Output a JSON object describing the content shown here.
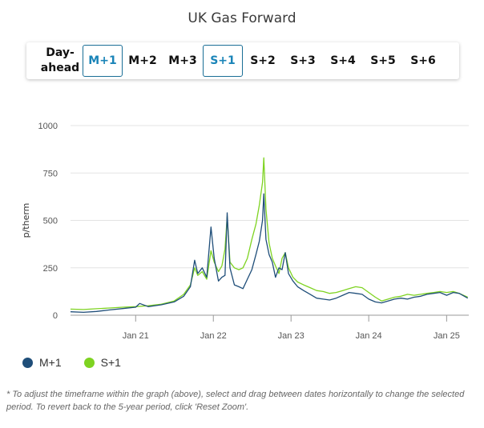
{
  "title": "UK Gas Forward",
  "tabs": [
    {
      "label": "Day-\nahead",
      "active": false
    },
    {
      "label": "M+1",
      "active": true
    },
    {
      "label": "M+2",
      "active": false
    },
    {
      "label": "M+3",
      "active": false
    },
    {
      "label": "S+1",
      "active": true
    },
    {
      "label": "S+2",
      "active": false
    },
    {
      "label": "S+3",
      "active": false
    },
    {
      "label": "S+4",
      "active": false
    },
    {
      "label": "S+5",
      "active": false
    },
    {
      "label": "S+6",
      "active": false
    }
  ],
  "legend": [
    {
      "label": "M+1",
      "color": "#1f4e79"
    },
    {
      "label": "S+1",
      "color": "#7ed321"
    }
  ],
  "note": "* To adjust the timeframe within the graph (above), select and drag between dates horizontally to change the selected period. To revert back to the 5-year period, click 'Reset Zoom'.",
  "chart_data": {
    "type": "line",
    "ylabel": "p/therm",
    "ylim": [
      0,
      1000
    ],
    "yticks": [
      0,
      250,
      500,
      750,
      1000
    ],
    "xticks": [
      "Jan 21",
      "Jan 22",
      "Jan 23",
      "Jan 24",
      "Jan 25"
    ],
    "xticks_dates": [
      "2021-01-01",
      "2022-01-01",
      "2023-01-01",
      "2024-01-01",
      "2025-01-01"
    ],
    "xlim": [
      "2020-03-01",
      "2025-04-15"
    ],
    "grid": true,
    "series": [
      {
        "name": "M+1",
        "color": "#1f4e79",
        "x": [
          "2020-03-01",
          "2020-05-01",
          "2020-07-01",
          "2020-09-01",
          "2020-11-01",
          "2021-01-01",
          "2021-01-20",
          "2021-03-01",
          "2021-05-01",
          "2021-07-01",
          "2021-08-15",
          "2021-09-15",
          "2021-10-05",
          "2021-10-20",
          "2021-11-10",
          "2021-12-01",
          "2021-12-21",
          "2022-01-05",
          "2022-01-25",
          "2022-02-10",
          "2022-02-25",
          "2022-03-07",
          "2022-03-20",
          "2022-04-10",
          "2022-05-01",
          "2022-05-20",
          "2022-06-10",
          "2022-07-01",
          "2022-07-20",
          "2022-08-05",
          "2022-08-20",
          "2022-08-26",
          "2022-09-05",
          "2022-09-20",
          "2022-10-05",
          "2022-10-20",
          "2022-11-05",
          "2022-11-20",
          "2022-12-05",
          "2022-12-20",
          "2023-01-10",
          "2023-02-01",
          "2023-03-01",
          "2023-04-01",
          "2023-05-01",
          "2023-06-01",
          "2023-07-01",
          "2023-08-01",
          "2023-09-01",
          "2023-10-01",
          "2023-11-01",
          "2023-12-01",
          "2024-01-01",
          "2024-02-01",
          "2024-03-01",
          "2024-04-01",
          "2024-05-01",
          "2024-06-01",
          "2024-07-01",
          "2024-08-01",
          "2024-09-01",
          "2024-10-01",
          "2024-11-01",
          "2024-12-01",
          "2025-01-01",
          "2025-02-01",
          "2025-03-01",
          "2025-04-10"
        ],
        "values": [
          18,
          15,
          20,
          28,
          35,
          42,
          62,
          45,
          55,
          70,
          100,
          150,
          290,
          220,
          250,
          200,
          465,
          300,
          180,
          200,
          210,
          540,
          250,
          160,
          150,
          140,
          190,
          240,
          320,
          390,
          500,
          640,
          400,
          320,
          280,
          200,
          250,
          240,
          330,
          220,
          180,
          150,
          130,
          110,
          90,
          85,
          80,
          90,
          105,
          120,
          115,
          110,
          85,
          70,
          65,
          75,
          85,
          90,
          85,
          95,
          100,
          110,
          115,
          120,
          105,
          120,
          115,
          90
        ]
      },
      {
        "name": "S+1",
        "color": "#7ed321",
        "x": [
          "2020-03-01",
          "2020-05-01",
          "2020-07-01",
          "2020-09-01",
          "2020-11-01",
          "2021-01-01",
          "2021-03-01",
          "2021-05-01",
          "2021-07-01",
          "2021-08-15",
          "2021-09-15",
          "2021-10-05",
          "2021-10-20",
          "2021-11-10",
          "2021-12-01",
          "2021-12-21",
          "2022-01-05",
          "2022-01-25",
          "2022-02-10",
          "2022-02-25",
          "2022-03-07",
          "2022-03-20",
          "2022-04-10",
          "2022-05-01",
          "2022-05-20",
          "2022-06-10",
          "2022-07-01",
          "2022-07-20",
          "2022-08-05",
          "2022-08-20",
          "2022-08-26",
          "2022-09-05",
          "2022-09-20",
          "2022-10-05",
          "2022-10-20",
          "2022-11-05",
          "2022-11-20",
          "2022-12-05",
          "2022-12-20",
          "2023-01-10",
          "2023-02-01",
          "2023-03-01",
          "2023-04-01",
          "2023-05-01",
          "2023-06-01",
          "2023-07-01",
          "2023-08-01",
          "2023-09-01",
          "2023-10-01",
          "2023-11-01",
          "2023-12-01",
          "2024-01-01",
          "2024-02-01",
          "2024-03-01",
          "2024-04-01",
          "2024-05-01",
          "2024-06-01",
          "2024-07-01",
          "2024-08-01",
          "2024-09-01",
          "2024-10-01",
          "2024-11-01",
          "2024-12-01",
          "2025-01-01",
          "2025-02-01",
          "2025-03-01",
          "2025-04-10"
        ],
        "values": [
          32,
          30,
          34,
          38,
          42,
          45,
          50,
          58,
          75,
          110,
          160,
          250,
          210,
          230,
          190,
          340,
          280,
          230,
          260,
          350,
          520,
          280,
          250,
          240,
          250,
          300,
          400,
          480,
          580,
          700,
          830,
          560,
          380,
          300,
          260,
          220,
          300,
          330,
          250,
          200,
          175,
          160,
          145,
          130,
          125,
          115,
          120,
          130,
          140,
          150,
          145,
          120,
          95,
          75,
          85,
          95,
          100,
          110,
          105,
          110,
          115,
          120,
          125,
          120,
          125,
          115,
          95
        ]
      }
    ]
  }
}
